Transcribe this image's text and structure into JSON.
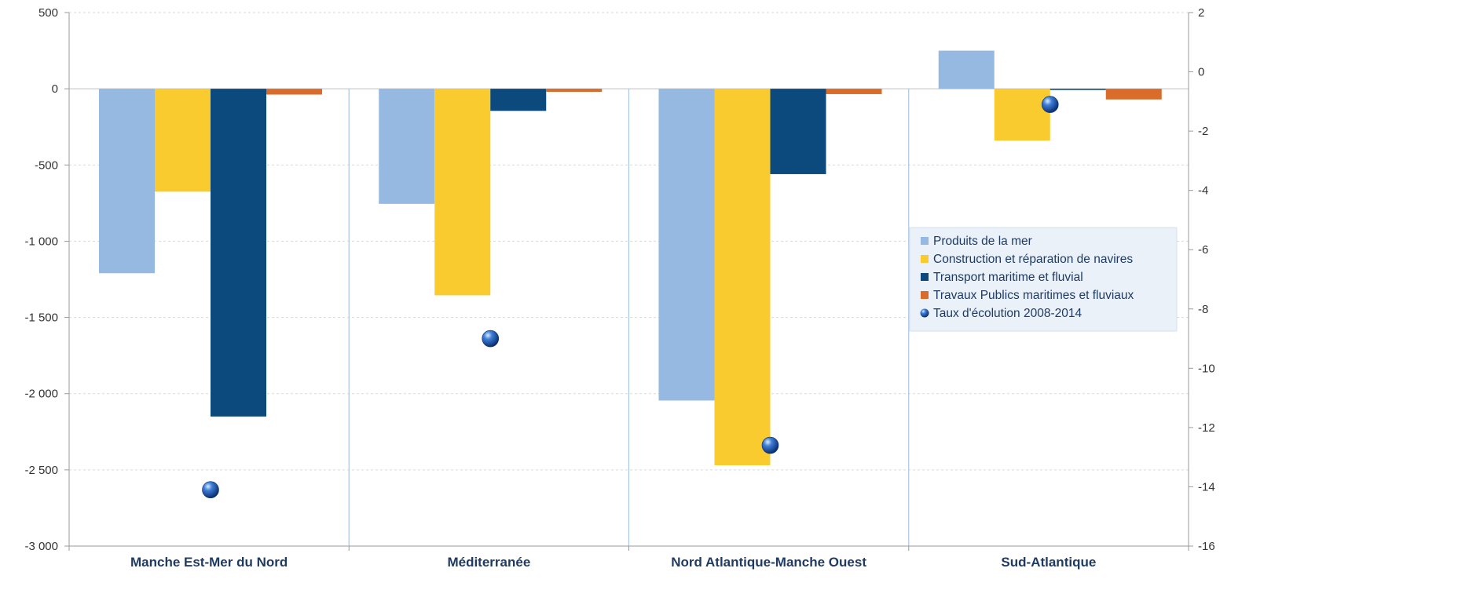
{
  "chart_data": {
    "type": "bar",
    "title": "",
    "categories": [
      "Manche Est-Mer du Nord",
      "Méditerranée",
      "Nord Atlantique-Manche Ouest",
      "Sud-Atlantique"
    ],
    "series": [
      {
        "name": "Produits de la mer",
        "color": "#95b9e0",
        "values": [
          -1210,
          -755,
          -2045,
          250
        ]
      },
      {
        "name": "Construction et réparation de navires",
        "color": "#f9cb2f",
        "values": [
          -675,
          -1355,
          -2470,
          -340
        ]
      },
      {
        "name": "Transport maritime et fluvial",
        "color": "#0c4a7e",
        "values": [
          -2150,
          -145,
          -560,
          -8
        ]
      },
      {
        "name": "Travaux Publics maritimes et fluviaux",
        "color": "#d96b2b",
        "values": [
          -38,
          -20,
          -35,
          -70
        ]
      }
    ],
    "secondary_series": {
      "name": "Taux d'écolution 2008-2014",
      "type": "scatter",
      "color": "#1f57b8",
      "axis": "right",
      "values": [
        -14.1,
        -9.0,
        -12.6,
        -1.1
      ]
    },
    "y_left": {
      "min": -3000,
      "max": 500,
      "ticks": [
        500,
        0,
        -500,
        -1000,
        -1500,
        -2000,
        -2500,
        -3000
      ],
      "tick_labels": [
        "500",
        "0",
        "-500",
        "-1 000",
        "-1 500",
        "-2 000",
        "-2 500",
        "-3 000"
      ]
    },
    "y_right": {
      "min": -16,
      "max": 2,
      "ticks": [
        2,
        0,
        -2,
        -4,
        -6,
        -8,
        -10,
        -12,
        -14,
        -16
      ],
      "tick_labels": [
        "2",
        "0",
        "-2",
        "-4",
        "-6",
        "-8",
        "-10",
        "-12",
        "-14",
        "-16"
      ]
    },
    "grid": true,
    "legend_position": "right-middle",
    "xlabel": "",
    "ylabel": ""
  }
}
